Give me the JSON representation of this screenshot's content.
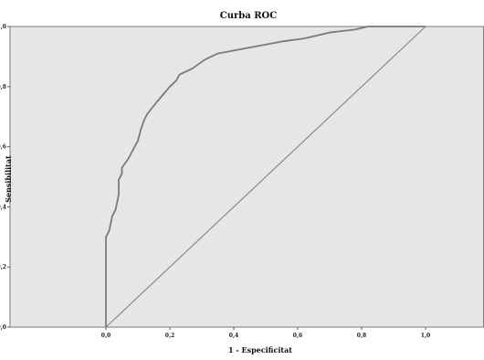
{
  "chart_data": {
    "type": "line",
    "title": "Curba ROC",
    "xlabel": "1 - Especificitat",
    "ylabel": "Sensibilitat",
    "xlim": [
      -0.3,
      1.2
    ],
    "ylim": [
      0.0,
      1.0
    ],
    "x_ticks": [
      "0,0",
      "0,2",
      "0,4",
      "0,6",
      "0,8",
      "1,0"
    ],
    "y_ticks": [
      "0,0",
      "0,2",
      "0,4",
      "0,6",
      "0,8",
      "1,0"
    ],
    "grid": false,
    "legend": false,
    "series": [
      {
        "x": [
          0.0,
          0.0,
          0.01,
          0.02,
          0.03,
          0.04,
          0.04,
          0.05,
          0.05,
          0.07,
          0.09,
          0.1,
          0.11,
          0.12,
          0.13,
          0.16,
          0.2,
          0.22,
          0.23,
          0.27,
          0.31,
          0.35,
          0.45,
          0.55,
          0.62,
          0.7,
          0.78,
          0.82,
          0.9,
          1.0
        ],
        "y": [
          0.0,
          0.3,
          0.32,
          0.37,
          0.39,
          0.44,
          0.49,
          0.51,
          0.53,
          0.56,
          0.6,
          0.62,
          0.66,
          0.69,
          0.71,
          0.75,
          0.8,
          0.82,
          0.84,
          0.86,
          0.89,
          0.91,
          0.93,
          0.95,
          0.96,
          0.98,
          0.99,
          1.0,
          1.0,
          1.0
        ]
      },
      {
        "x": [
          0.0,
          1.0
        ],
        "y": [
          0.0,
          1.0
        ]
      }
    ],
    "colors": {
      "plot_bg": "#e6e6e6",
      "frame": "#7a7a7a",
      "curve": "#7a7a7a",
      "reference": "#8a8a8a",
      "axis": "#555555"
    }
  }
}
